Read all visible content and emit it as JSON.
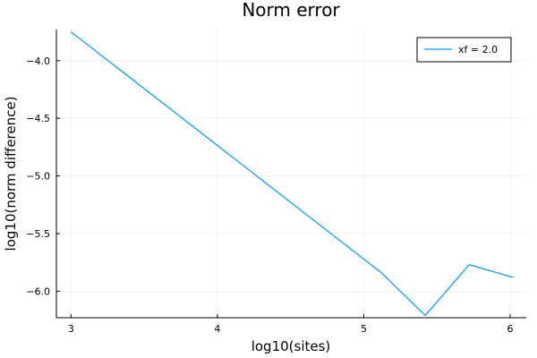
{
  "chart_data": {
    "type": "line",
    "title": "Norm error",
    "xlabel": "log10(sites)",
    "ylabel": "log10(norm difference)",
    "xlim": [
      2.9,
      6.11
    ],
    "ylim": [
      -6.23,
      -3.73
    ],
    "xticks": [
      3,
      4,
      5,
      6
    ],
    "xtick_labels": [
      "3",
      "4",
      "5",
      "6"
    ],
    "yticks": [
      -4.0,
      -4.5,
      -5.0,
      -5.5,
      -6.0
    ],
    "ytick_labels": [
      "−4.0",
      "−4.5",
      "−5.0",
      "−5.5",
      "−6.0"
    ],
    "grid": true,
    "legend_position": "top-right",
    "series": [
      {
        "name": "xf = 2.0",
        "color": "#009AF9",
        "x": [
          3.0,
          5.12,
          5.42,
          5.72,
          6.02
        ],
        "y": [
          -3.75,
          -5.84,
          -6.21,
          -5.77,
          -5.88
        ]
      }
    ]
  }
}
